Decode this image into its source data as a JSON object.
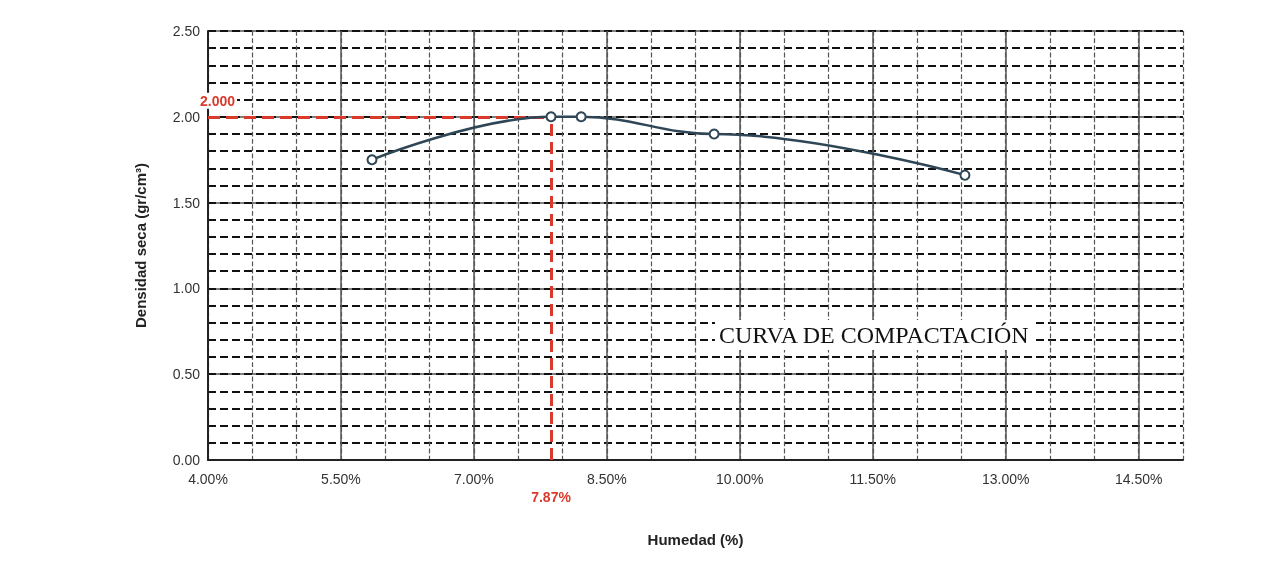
{
  "chart_data": {
    "type": "line",
    "title": "CURVA DE COMPACTACIÓN",
    "xlabel": "Humedad (%)",
    "ylabel": "Densidad seca (gr/cm³)",
    "x": [
      5.85,
      7.87,
      8.21,
      9.71,
      12.54
    ],
    "series": [
      {
        "color": "#2e4656",
        "values": [
          1.75,
          2.0,
          2.0,
          1.9,
          1.66
        ]
      }
    ],
    "marker": "circle",
    "line_style": "solid",
    "grid": true,
    "xlim": [
      4,
      15
    ],
    "xticks": [
      {
        "value": 4,
        "label": "4.00%"
      },
      {
        "value": 5.5,
        "label": "5.50%"
      },
      {
        "value": 7,
        "label": "7.00%"
      },
      {
        "value": 8.5,
        "label": "8.50%"
      },
      {
        "value": 10,
        "label": "10.00%"
      },
      {
        "value": 11.5,
        "label": "11.50%"
      },
      {
        "value": 13,
        "label": "13.00%"
      },
      {
        "value": 14.5,
        "label": "14.50%"
      }
    ],
    "ylim": [
      0,
      2.5
    ],
    "yticks": [
      {
        "value": 0,
        "label": "0.00"
      },
      {
        "value": 0.5,
        "label": "0.50"
      },
      {
        "value": 1,
        "label": "1.00"
      },
      {
        "value": 1.5,
        "label": "1.50"
      },
      {
        "value": 2,
        "label": "2.00"
      },
      {
        "value": 2.5,
        "label": "2.50"
      }
    ],
    "ref_lines": [
      {
        "axis": "y",
        "value": 2.0,
        "label": "2.000",
        "color": "#d93a2b",
        "line_style": "dashed"
      },
      {
        "axis": "x",
        "value": 7.87,
        "label": "7.87%",
        "color": "#d93a2b",
        "line_style": "dashed"
      }
    ]
  }
}
